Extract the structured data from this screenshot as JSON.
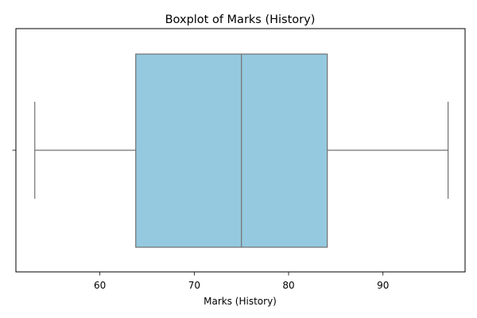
{
  "chart_data": {
    "type": "boxplot",
    "title": "Boxplot of Marks (History)",
    "xlabel": "Marks (History)",
    "ylabel": "",
    "xlim": [
      51.1,
      98.7
    ],
    "xticks": [
      60,
      70,
      80,
      90
    ],
    "orientation": "horizontal",
    "grid": false,
    "legend": "none",
    "box": {
      "whisker_low": 53.1,
      "q1": 63.8,
      "median": 75.0,
      "q3": 84.1,
      "whisker_high": 96.9
    },
    "colors": {
      "box_fill": "#95c9df",
      "line": "#707070",
      "axes": "#000000",
      "background": "#ffffff"
    }
  }
}
